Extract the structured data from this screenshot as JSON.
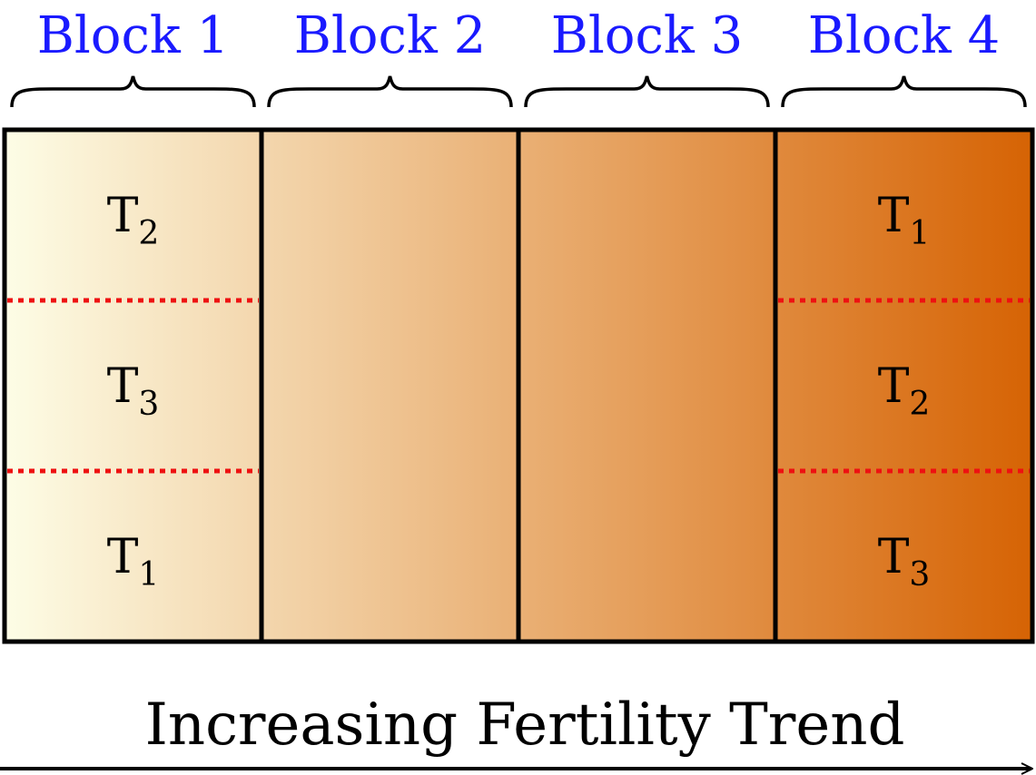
{
  "blocks": [
    {
      "label": "Block 1",
      "plots": [
        "2",
        "3",
        "1"
      ]
    },
    {
      "label": "Block 2",
      "plots": []
    },
    {
      "label": "Block 3",
      "plots": []
    },
    {
      "label": "Block 4",
      "plots": [
        "1",
        "2",
        "3"
      ]
    }
  ],
  "treatment_prefix": "T",
  "trend_label": "Increasing Fertility Trend",
  "colors": {
    "block_label": "#1a1aff",
    "gradient_start": "#fdfde6",
    "gradient_end": "#d66304",
    "divider": "#ee1111",
    "stroke": "#000000"
  }
}
